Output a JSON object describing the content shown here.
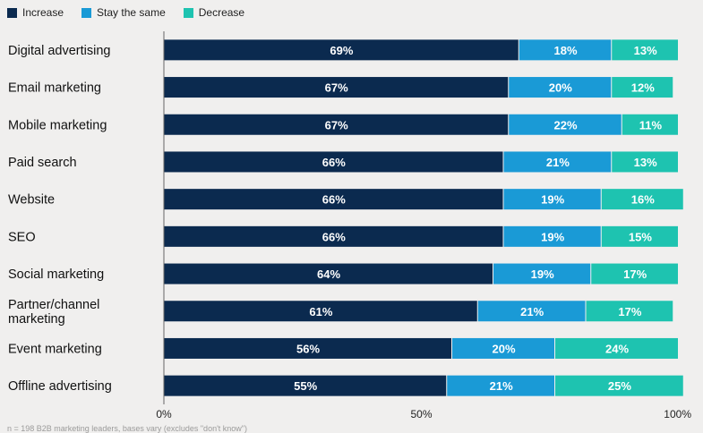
{
  "legend": [
    {
      "label": "Increase",
      "color": "#0b2a4f"
    },
    {
      "label": "Stay the same",
      "color": "#1a9ad6"
    },
    {
      "label": "Decrease",
      "color": "#1ec3b0"
    }
  ],
  "footnote": "n = 198 B2B marketing leaders, bases vary (excludes \"don't know\")",
  "chart_data": {
    "type": "bar",
    "orientation": "horizontal",
    "stacked": true,
    "categories": [
      "Digital advertising",
      "Email marketing",
      "Mobile marketing",
      "Paid search",
      "Website",
      "SEO",
      "Social marketing",
      "Partner/channel marketing",
      "Event marketing",
      "Offline advertising"
    ],
    "series": [
      {
        "name": "Increase",
        "color": "#0b2a4f",
        "values": [
          69,
          67,
          67,
          66,
          66,
          66,
          64,
          61,
          56,
          55
        ]
      },
      {
        "name": "Stay the same",
        "color": "#1a9ad6",
        "values": [
          18,
          20,
          22,
          21,
          19,
          19,
          19,
          21,
          20,
          21
        ]
      },
      {
        "name": "Decrease",
        "color": "#1ec3b0",
        "values": [
          13,
          12,
          11,
          13,
          16,
          15,
          17,
          17,
          24,
          25
        ]
      }
    ],
    "value_suffix": "%",
    "xlim": [
      0,
      100
    ],
    "x_ticks": [
      {
        "value": 0,
        "label": "0%"
      },
      {
        "value": 50,
        "label": "50%"
      },
      {
        "value": 100,
        "label": "100%"
      }
    ],
    "grid": false,
    "legend_position": "top-left"
  }
}
